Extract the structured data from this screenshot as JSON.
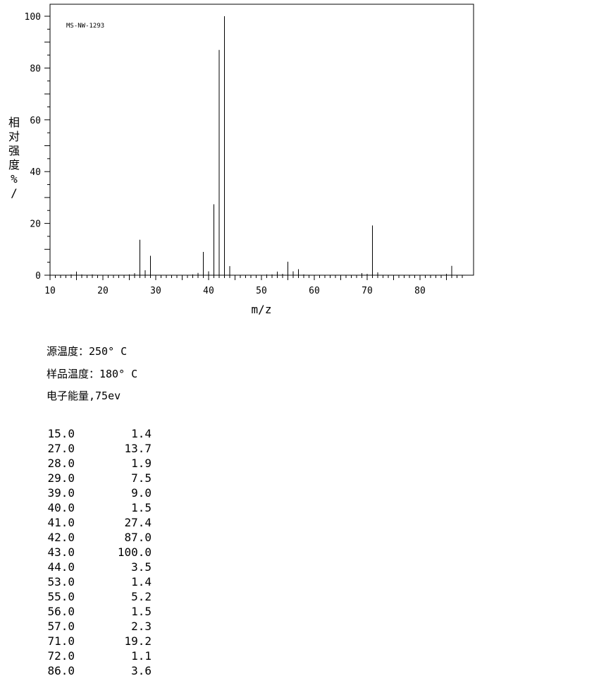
{
  "chart_data": {
    "type": "bar",
    "title": "MS-NW-1293",
    "xlabel": "m/z",
    "ylabel": "相对强度%/",
    "xlim": [
      10,
      90
    ],
    "ylim": [
      0,
      100
    ],
    "x_ticks": [
      10,
      20,
      30,
      40,
      50,
      60,
      70,
      80
    ],
    "y_ticks": [
      0,
      20,
      40,
      60,
      80,
      100
    ],
    "grid": false,
    "peaks": [
      {
        "mz": 14,
        "intensity": 0.3
      },
      {
        "mz": 15,
        "intensity": 1.4
      },
      {
        "mz": 16,
        "intensity": 0.3
      },
      {
        "mz": 18,
        "intensity": 0.3
      },
      {
        "mz": 25,
        "intensity": 0.3
      },
      {
        "mz": 26,
        "intensity": 0.8
      },
      {
        "mz": 27,
        "intensity": 13.7
      },
      {
        "mz": 28,
        "intensity": 1.9
      },
      {
        "mz": 29,
        "intensity": 7.5
      },
      {
        "mz": 37,
        "intensity": 0.3
      },
      {
        "mz": 38,
        "intensity": 0.9
      },
      {
        "mz": 39,
        "intensity": 9.0
      },
      {
        "mz": 40,
        "intensity": 1.5
      },
      {
        "mz": 41,
        "intensity": 27.4
      },
      {
        "mz": 42,
        "intensity": 87.0
      },
      {
        "mz": 43,
        "intensity": 100.0
      },
      {
        "mz": 44,
        "intensity": 3.5
      },
      {
        "mz": 51,
        "intensity": 0.3
      },
      {
        "mz": 52,
        "intensity": 0.3
      },
      {
        "mz": 53,
        "intensity": 1.4
      },
      {
        "mz": 54,
        "intensity": 0.5
      },
      {
        "mz": 55,
        "intensity": 5.2
      },
      {
        "mz": 56,
        "intensity": 1.5
      },
      {
        "mz": 57,
        "intensity": 2.3
      },
      {
        "mz": 58,
        "intensity": 0.3
      },
      {
        "mz": 69,
        "intensity": 0.8
      },
      {
        "mz": 70,
        "intensity": 0.5
      },
      {
        "mz": 71,
        "intensity": 19.2
      },
      {
        "mz": 72,
        "intensity": 1.1
      },
      {
        "mz": 85,
        "intensity": 0.5
      },
      {
        "mz": 86,
        "intensity": 3.6
      }
    ]
  },
  "conditions": {
    "source_temp": "源温度：250° C",
    "sample_temp": "样品温度：180° C",
    "electron_energy": "电子能量,75ev"
  },
  "peak_table": [
    {
      "mz": "15.0",
      "intensity": "1.4"
    },
    {
      "mz": "27.0",
      "intensity": "13.7"
    },
    {
      "mz": "28.0",
      "intensity": "1.9"
    },
    {
      "mz": "29.0",
      "intensity": "7.5"
    },
    {
      "mz": "39.0",
      "intensity": "9.0"
    },
    {
      "mz": "40.0",
      "intensity": "1.5"
    },
    {
      "mz": "41.0",
      "intensity": "27.4"
    },
    {
      "mz": "42.0",
      "intensity": "87.0"
    },
    {
      "mz": "43.0",
      "intensity": "100.0"
    },
    {
      "mz": "44.0",
      "intensity": "3.5"
    },
    {
      "mz": "53.0",
      "intensity": "1.4"
    },
    {
      "mz": "55.0",
      "intensity": "5.2"
    },
    {
      "mz": "56.0",
      "intensity": "1.5"
    },
    {
      "mz": "57.0",
      "intensity": "2.3"
    },
    {
      "mz": "71.0",
      "intensity": "19.2"
    },
    {
      "mz": "72.0",
      "intensity": "1.1"
    },
    {
      "mz": "86.0",
      "intensity": "3.6"
    }
  ]
}
